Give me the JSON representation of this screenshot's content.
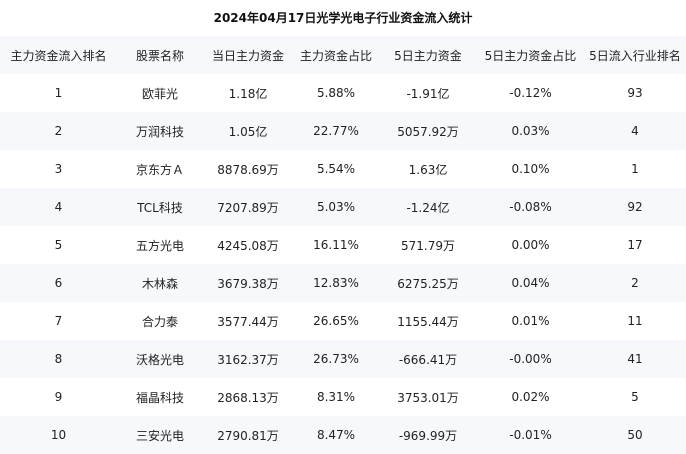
{
  "title": "2024年04月17日光学光电子行业资金流入统计",
  "table": {
    "headers": [
      "主力资金流入排名",
      "股票名称",
      "当日主力资金",
      "主力资金占比",
      "5日主力资金",
      "5日主力资金占比",
      "5日流入行业排名"
    ],
    "rows": [
      [
        "1",
        "欧菲光",
        "1.18亿",
        "5.88%",
        "-1.91亿",
        "-0.12%",
        "93"
      ],
      [
        "2",
        "万润科技",
        "1.05亿",
        "22.77%",
        "5057.92万",
        "0.03%",
        "4"
      ],
      [
        "3",
        "京东方Ａ",
        "8878.69万",
        "5.54%",
        "1.63亿",
        "0.10%",
        "1"
      ],
      [
        "4",
        "TCL科技",
        "7207.89万",
        "5.03%",
        "-1.24亿",
        "-0.08%",
        "92"
      ],
      [
        "5",
        "五方光电",
        "4245.08万",
        "16.11%",
        "571.79万",
        "0.00%",
        "17"
      ],
      [
        "6",
        "木林森",
        "3679.38万",
        "12.83%",
        "6275.25万",
        "0.04%",
        "2"
      ],
      [
        "7",
        "合力泰",
        "3577.44万",
        "26.65%",
        "1155.44万",
        "0.01%",
        "11"
      ],
      [
        "8",
        "沃格光电",
        "3162.37万",
        "26.73%",
        "-666.41万",
        "-0.00%",
        "41"
      ],
      [
        "9",
        "福晶科技",
        "2868.13万",
        "8.31%",
        "3753.01万",
        "0.02%",
        "5"
      ],
      [
        "10",
        "三安光电",
        "2790.81万",
        "8.47%",
        "-969.99万",
        "-0.01%",
        "50"
      ]
    ]
  },
  "colors": {
    "header_bg": "#f6f8fc",
    "stripe_bg": "#f6f8fc",
    "text": "#222222"
  }
}
